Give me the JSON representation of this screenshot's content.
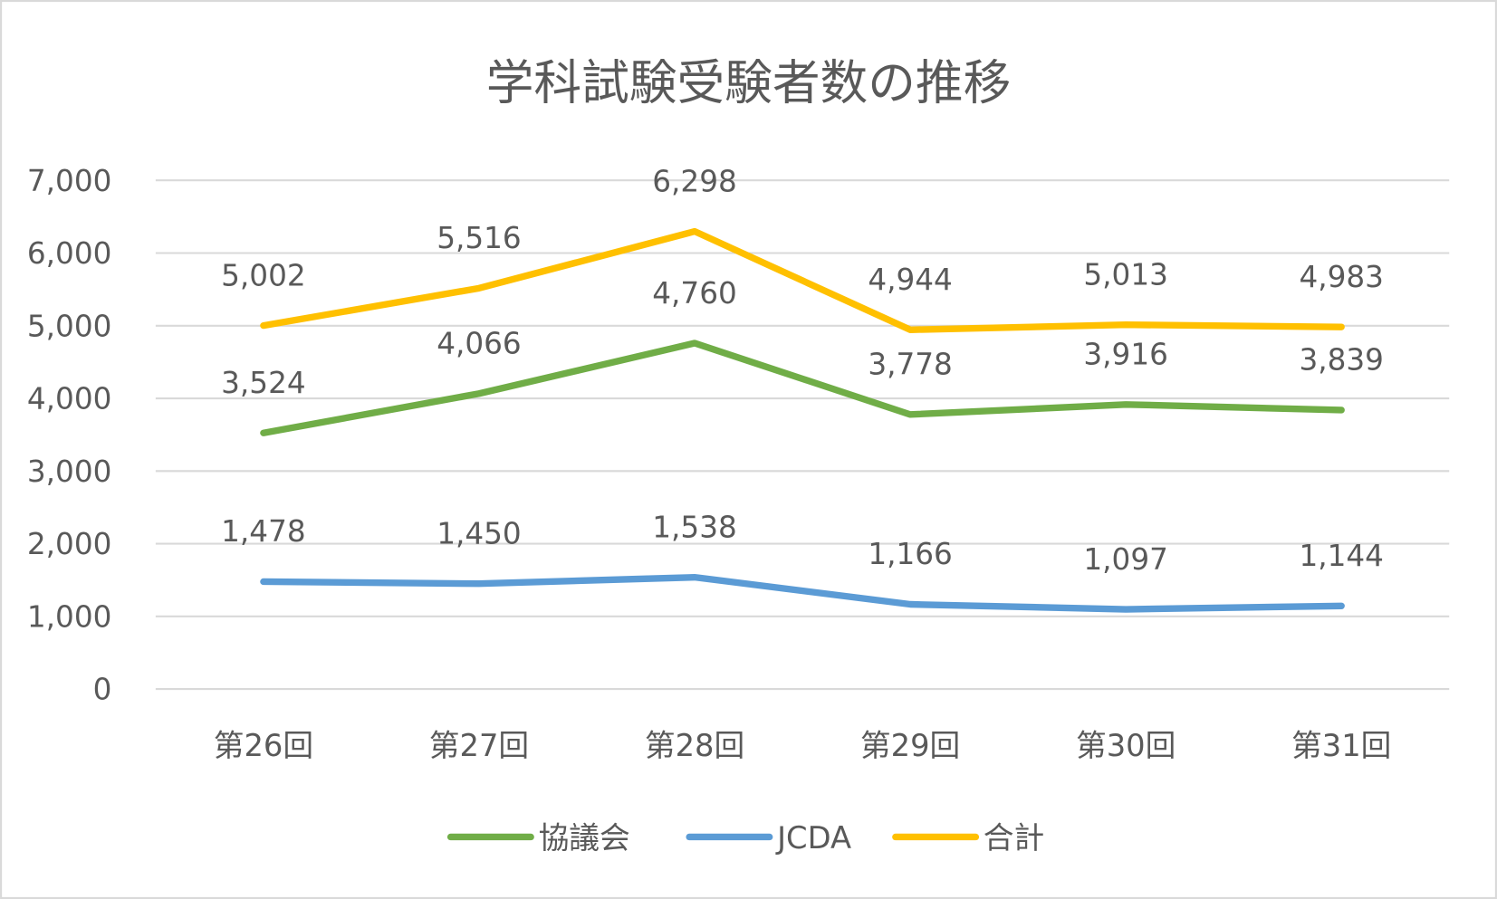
{
  "chart_data": {
    "type": "line",
    "title": "学科試験受験者数の推移",
    "xlabel": "",
    "ylabel": "",
    "categories": [
      "第26回",
      "第27回",
      "第28回",
      "第29回",
      "第30回",
      "第31回"
    ],
    "ylim": [
      0,
      7000
    ],
    "yticks": [
      0,
      1000,
      2000,
      3000,
      4000,
      5000,
      6000,
      7000
    ],
    "ytick_labels": [
      "0",
      "1,000",
      "2,000",
      "3,000",
      "4,000",
      "5,000",
      "6,000",
      "7,000"
    ],
    "grid": true,
    "legend_position": "bottom",
    "series": [
      {
        "name": "協議会",
        "color": "#70AD47",
        "values": [
          3524,
          4066,
          4760,
          3778,
          3916,
          3839
        ],
        "labels": [
          "3,524",
          "4,066",
          "4,760",
          "3,778",
          "3,916",
          "3,839"
        ]
      },
      {
        "name": "JCDA",
        "color": "#5B9BD5",
        "values": [
          1478,
          1450,
          1538,
          1166,
          1097,
          1144
        ],
        "labels": [
          "1,478",
          "1,450",
          "1,538",
          "1,166",
          "1,097",
          "1,144"
        ]
      },
      {
        "name": "合計",
        "color": "#FFC000",
        "values": [
          5002,
          5516,
          6298,
          4944,
          5013,
          4983
        ],
        "labels": [
          "5,002",
          "5,516",
          "6,298",
          "4,944",
          "5,013",
          "4,983"
        ]
      }
    ]
  }
}
